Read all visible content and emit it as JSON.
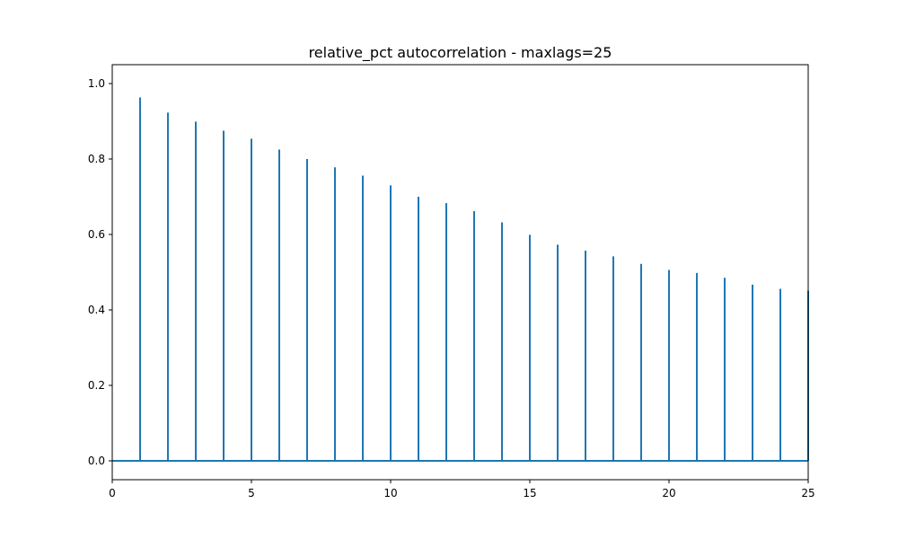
{
  "chart_data": {
    "type": "stem",
    "title": "relative_pct autocorrelation - maxlags=25",
    "xlabel": "",
    "ylabel": "",
    "xlim": [
      0,
      25
    ],
    "ylim": [
      -0.05,
      1.05
    ],
    "xticks": [
      0,
      5,
      10,
      15,
      20,
      25
    ],
    "xtick_labels": [
      "0",
      "5",
      "10",
      "15",
      "20",
      "25"
    ],
    "yticks": [
      0.0,
      0.2,
      0.4,
      0.6,
      0.8,
      1.0
    ],
    "ytick_labels": [
      "0.0",
      "0.2",
      "0.4",
      "0.6",
      "0.8",
      "1.0"
    ],
    "grid": false,
    "series": [
      {
        "color": "#1f77b4",
        "x": [
          1,
          2,
          3,
          4,
          5,
          6,
          7,
          8,
          9,
          10,
          11,
          12,
          13,
          14,
          15,
          16,
          17,
          18,
          19,
          20,
          21,
          22,
          23,
          24,
          25
        ],
        "values": [
          0.963,
          0.923,
          0.899,
          0.875,
          0.854,
          0.825,
          0.8,
          0.778,
          0.756,
          0.73,
          0.7,
          0.683,
          0.662,
          0.632,
          0.599,
          0.573,
          0.557,
          0.542,
          0.522,
          0.506,
          0.498,
          0.485,
          0.467,
          0.456,
          0.451
        ]
      }
    ],
    "baseline": 0
  }
}
